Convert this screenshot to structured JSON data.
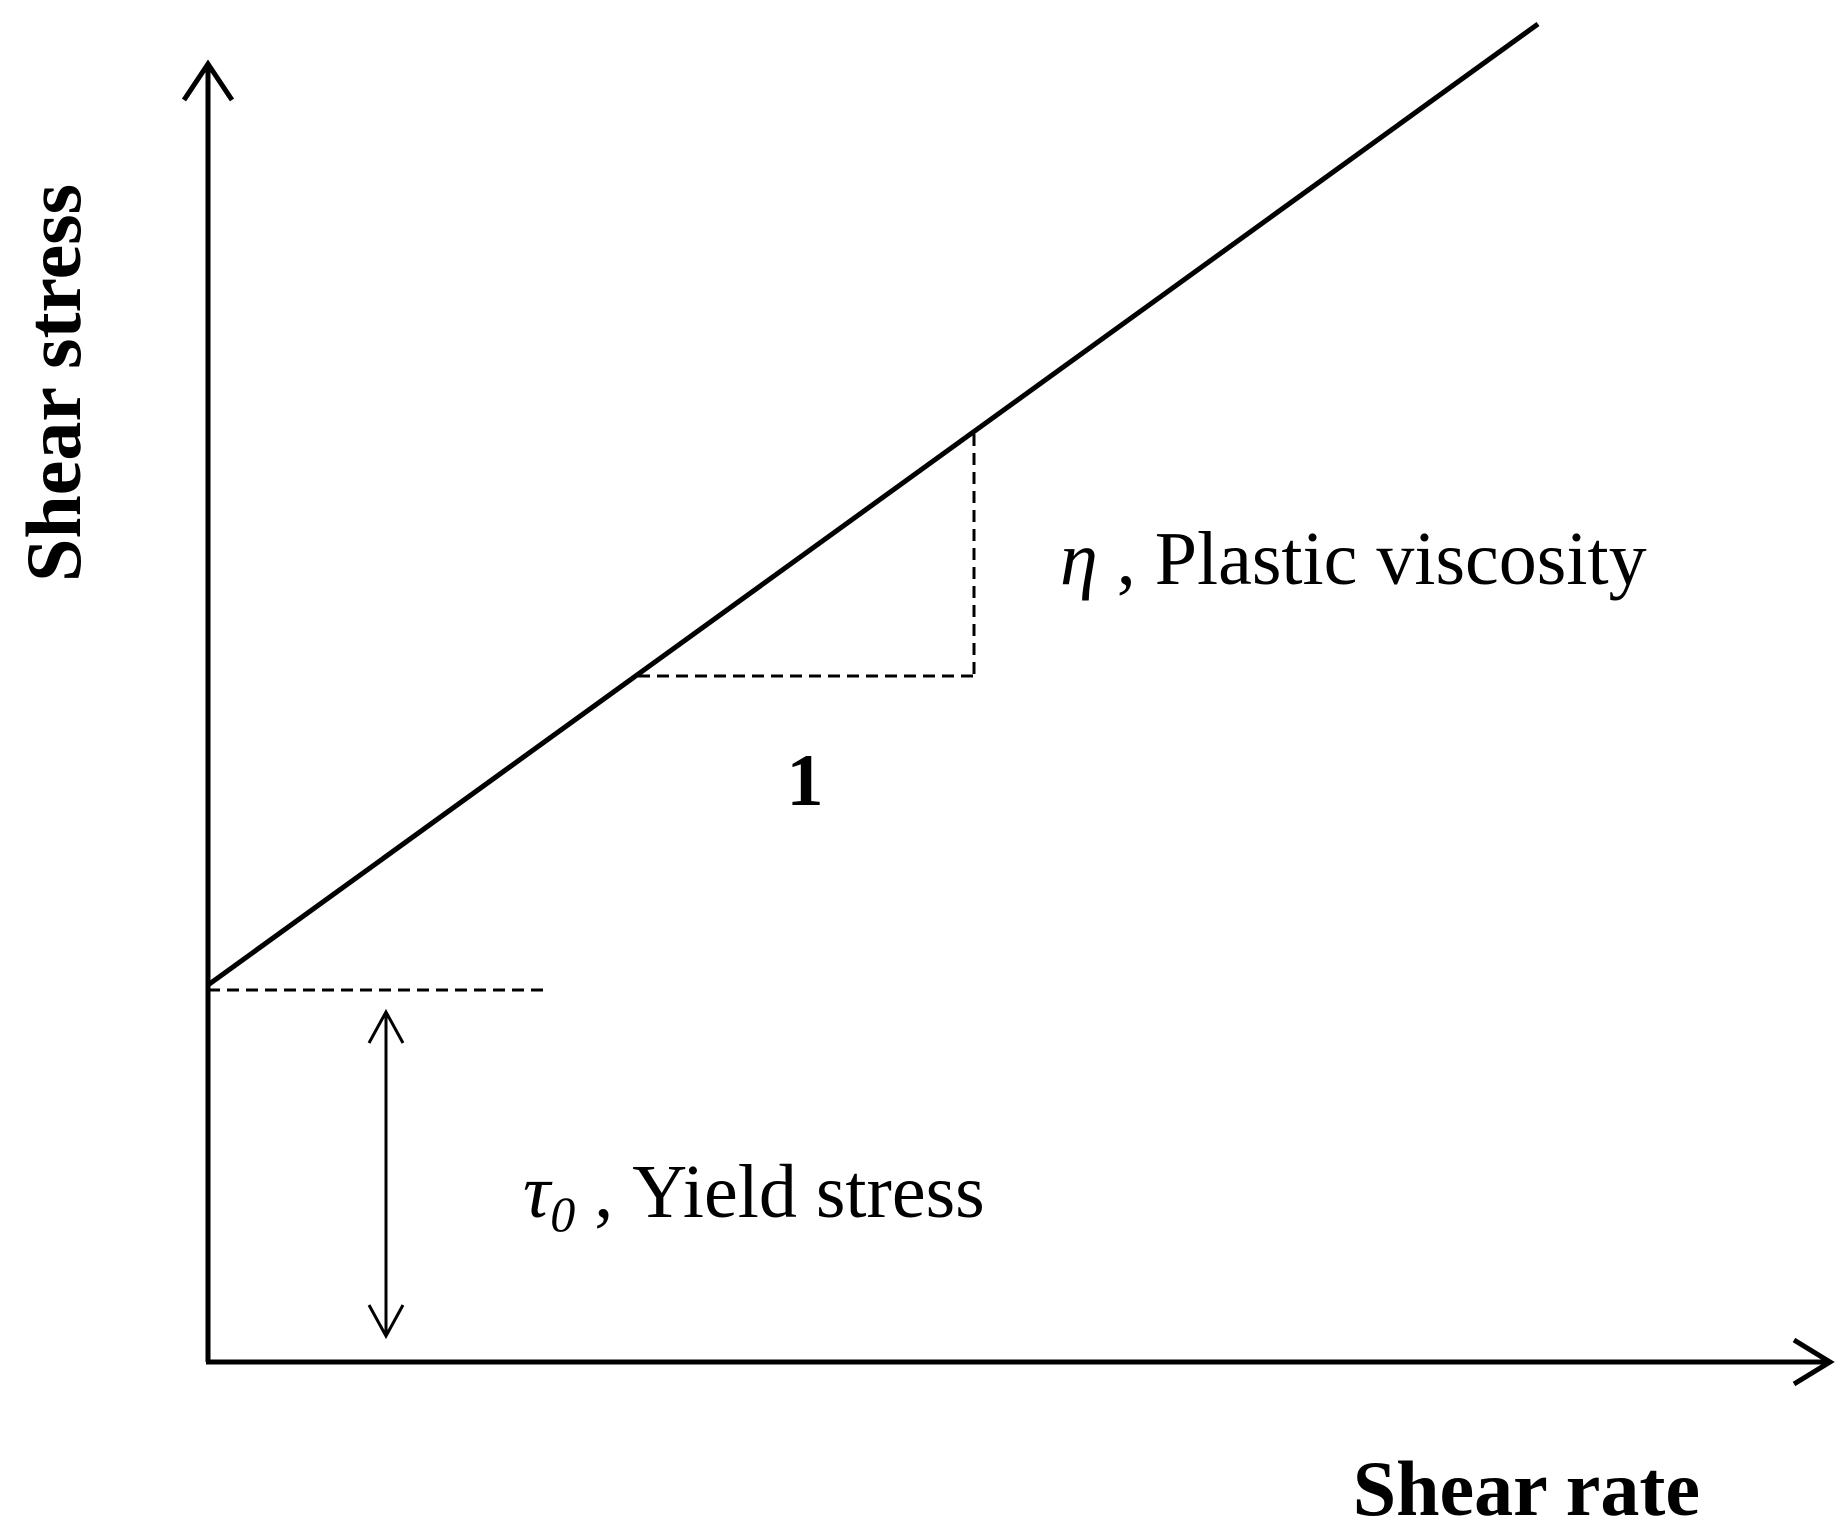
{
  "axes": {
    "y_label": "Shear stress",
    "x_label": "Shear rate"
  },
  "annotations": {
    "slope_symbol": "η",
    "slope_label": " , Plastic viscosity",
    "run_label": "1",
    "yield_symbol": "τ",
    "yield_subscript": "0",
    "yield_label": " , Yield stress"
  },
  "colors": {
    "stroke": "#000000",
    "background": "#ffffff"
  }
}
